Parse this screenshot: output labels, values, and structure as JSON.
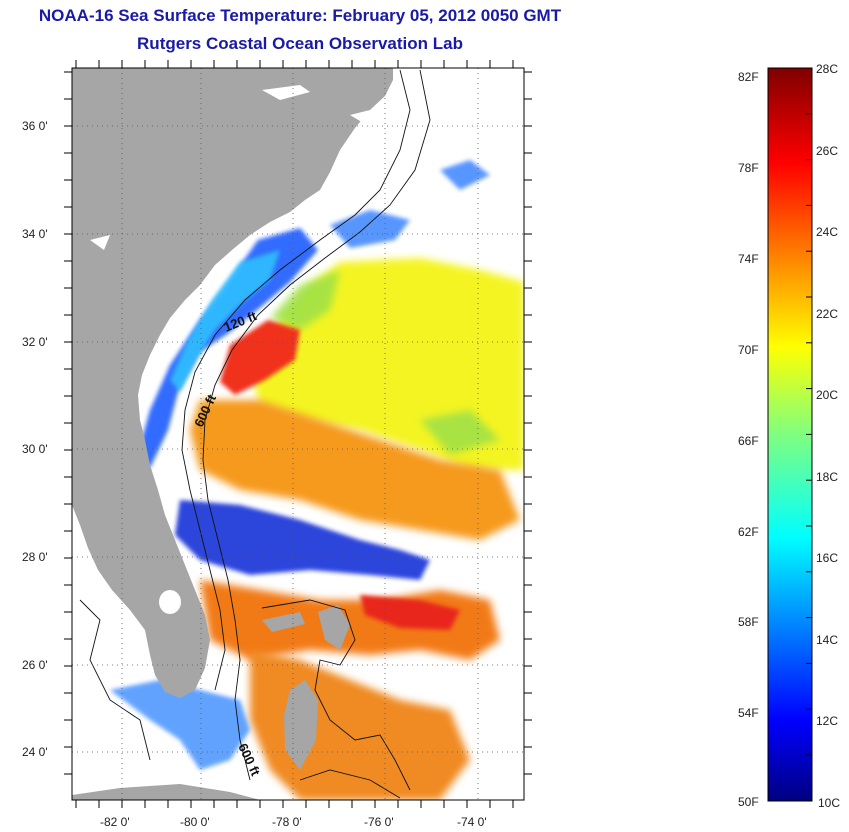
{
  "title": {
    "line1": "NOAA-16 Sea Surface Temperature:  February 05, 2012 0050 GMT",
    "line2": "Rutgers Coastal Ocean Observation Lab"
  },
  "map": {
    "lat_labels": [
      "36 0'",
      "34 0'",
      "32 0'",
      "30 0'",
      "28 0'",
      "26 0'",
      "24 0'"
    ],
    "lon_labels": [
      "-82 0'",
      "-80 0'",
      "-78 0'",
      "-76 0'",
      "-74 0'"
    ],
    "contour_labels": [
      "120 ft",
      "600 ft",
      "600 ft"
    ],
    "land_color": "#a6a6a6",
    "no_data_color": "#ffffff"
  },
  "colorbar": {
    "fahrenheit_labels": [
      "82F",
      "78F",
      "74F",
      "70F",
      "66F",
      "62F",
      "58F",
      "54F",
      "50F"
    ],
    "celsius_labels": [
      "28C",
      "26C",
      "24C",
      "22C",
      "20C",
      "18C",
      "16C",
      "14C",
      "12C",
      "10C"
    ],
    "range_c": [
      10,
      28
    ]
  }
}
